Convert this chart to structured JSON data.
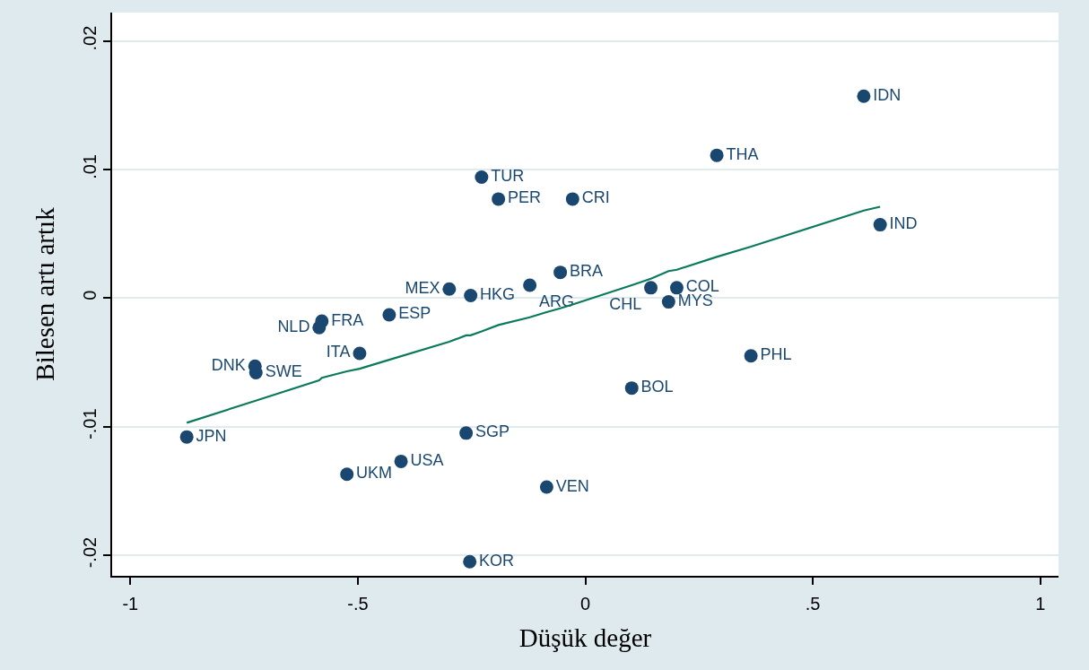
{
  "chart_data": {
    "type": "scatter",
    "xlabel": "Düşük değer",
    "ylabel": "Bilesen artı artık",
    "xlim": [
      -1.04,
      1.04
    ],
    "ylim": [
      -0.0216,
      0.0222
    ],
    "xticks": [
      -1,
      {
        "value": -0.5,
        "label": "-.5"
      },
      0,
      {
        "value": 0.5,
        "label": ".5"
      },
      1
    ],
    "yticks": [
      {
        "value": -0.02,
        "label": "-.02"
      },
      {
        "value": -0.01,
        "label": "-.01"
      },
      0,
      {
        "value": 0.01,
        "label": ".01"
      },
      {
        "value": 0.02,
        "label": ".02"
      }
    ],
    "grid": "y",
    "marker": "circle",
    "line_style": "solid",
    "series": [
      {
        "color": "#1a476f",
        "x": [
          0.612,
          0.289,
          -0.228,
          -0.191,
          -0.028,
          0.648,
          -0.055,
          -0.122,
          -0.299,
          -0.252,
          0.144,
          0.201,
          0.183,
          -0.431,
          -0.579,
          -0.585,
          -0.496,
          -0.726,
          -0.724,
          0.364,
          0.102,
          -0.876,
          -0.262,
          -0.405,
          -0.524,
          -0.085,
          -0.254
        ],
        "values": [
          0.0157,
          0.0111,
          0.0094,
          0.0077,
          0.0077,
          0.0057,
          0.002,
          0.001,
          0.0007,
          0.0002,
          0.0008,
          0.0008,
          -0.0003,
          -0.0013,
          -0.0018,
          -0.0023,
          -0.0043,
          -0.0053,
          -0.0058,
          -0.0045,
          -0.007,
          -0.0108,
          -0.0105,
          -0.0127,
          -0.0137,
          -0.0147,
          -0.0205
        ],
        "value_labels": [
          "IDN",
          "THA",
          "TUR",
          "PER",
          "CRI",
          "IND",
          "BRA",
          "ARG",
          "MEX",
          "HKG",
          "CHL",
          "COL",
          "MYS",
          "ESP",
          "FRA",
          "NLD",
          "ITA",
          "DNK",
          "SWE",
          "PHL",
          "BOL",
          "JPN",
          "SGP",
          "USA",
          "UKM",
          "VEN",
          "KOR"
        ]
      },
      {
        "type": "line",
        "color": "#0b7a5c",
        "marker": "none",
        "x": [
          -0.876,
          -0.726,
          -0.585,
          -0.579,
          -0.524,
          -0.496,
          -0.431,
          -0.299,
          -0.262,
          -0.252,
          -0.228,
          -0.191,
          -0.122,
          -0.085,
          -0.055,
          -0.028,
          0.102,
          0.144,
          0.183,
          0.201,
          0.289,
          0.364,
          0.612,
          0.648
        ],
        "values": [
          -0.0097,
          -0.008,
          -0.0064,
          -0.0062,
          -0.0057,
          -0.0055,
          -0.0048,
          -0.0034,
          -0.0029,
          -0.0029,
          -0.0026,
          -0.0021,
          -0.0015,
          -0.0011,
          -0.0008,
          -0.0005,
          0.001,
          0.0015,
          0.0021,
          0.0022,
          0.0032,
          0.004,
          0.0068,
          0.0071
        ]
      }
    ]
  }
}
